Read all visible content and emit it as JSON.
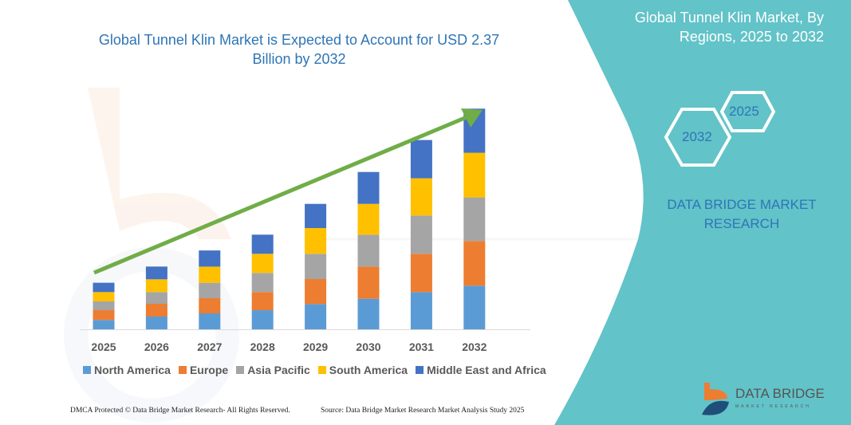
{
  "header": {
    "title": "Global Tunnel Klin Market is Expected to Account for USD 2.37 Billion by 2032",
    "side_title": "Global Tunnel Klin Market, By Regions, 2025 to 2032"
  },
  "side_panel": {
    "hex_start": "2025",
    "hex_end": "2032",
    "brand": "DATA BRIDGE MARKET RESEARCH",
    "logo_name": "DATA BRIDGE",
    "logo_sub": "MARKET RESEARCH",
    "panel_color": "#62c3c8"
  },
  "footer": {
    "left": "DMCA Protected © Data Bridge Market Research- All Rights Reserved.",
    "right": "Source: Data Bridge Market Research Market Analysis Study 2025"
  },
  "chart_data": {
    "type": "bar",
    "stacked": true,
    "title": "Global Tunnel Klin Market is Expected to Account for USD 2.37 Billion by 2032",
    "categories": [
      "2025",
      "2026",
      "2027",
      "2028",
      "2029",
      "2030",
      "2031",
      "2032"
    ],
    "series": [
      {
        "name": "North America",
        "color": "#5b9bd5",
        "values": [
          11.7,
          16,
          20,
          24,
          31.7,
          38.3,
          46.7,
          54.7
        ]
      },
      {
        "name": "Europe",
        "color": "#ed7d31",
        "values": [
          12.3,
          16,
          19,
          22.7,
          31.3,
          40.3,
          48,
          56
        ]
      },
      {
        "name": "Asia Pacific",
        "color": "#a5a5a5",
        "values": [
          11,
          14.7,
          19.3,
          24,
          31.7,
          40,
          48,
          54.7
        ]
      },
      {
        "name": "South America",
        "color": "#ffc000",
        "values": [
          11.7,
          16,
          20.3,
          24,
          32.3,
          38.7,
          46.7,
          56
        ]
      },
      {
        "name": "Middle East and Africa",
        "color": "#4472c4",
        "values": [
          11.7,
          16,
          20.3,
          24,
          30.3,
          40,
          48,
          55.3
        ]
      }
    ],
    "y_axis_shown": false,
    "grid": false,
    "legend": "bottom",
    "trend_arrow": {
      "color": "#70ad47",
      "direction": "up"
    }
  }
}
